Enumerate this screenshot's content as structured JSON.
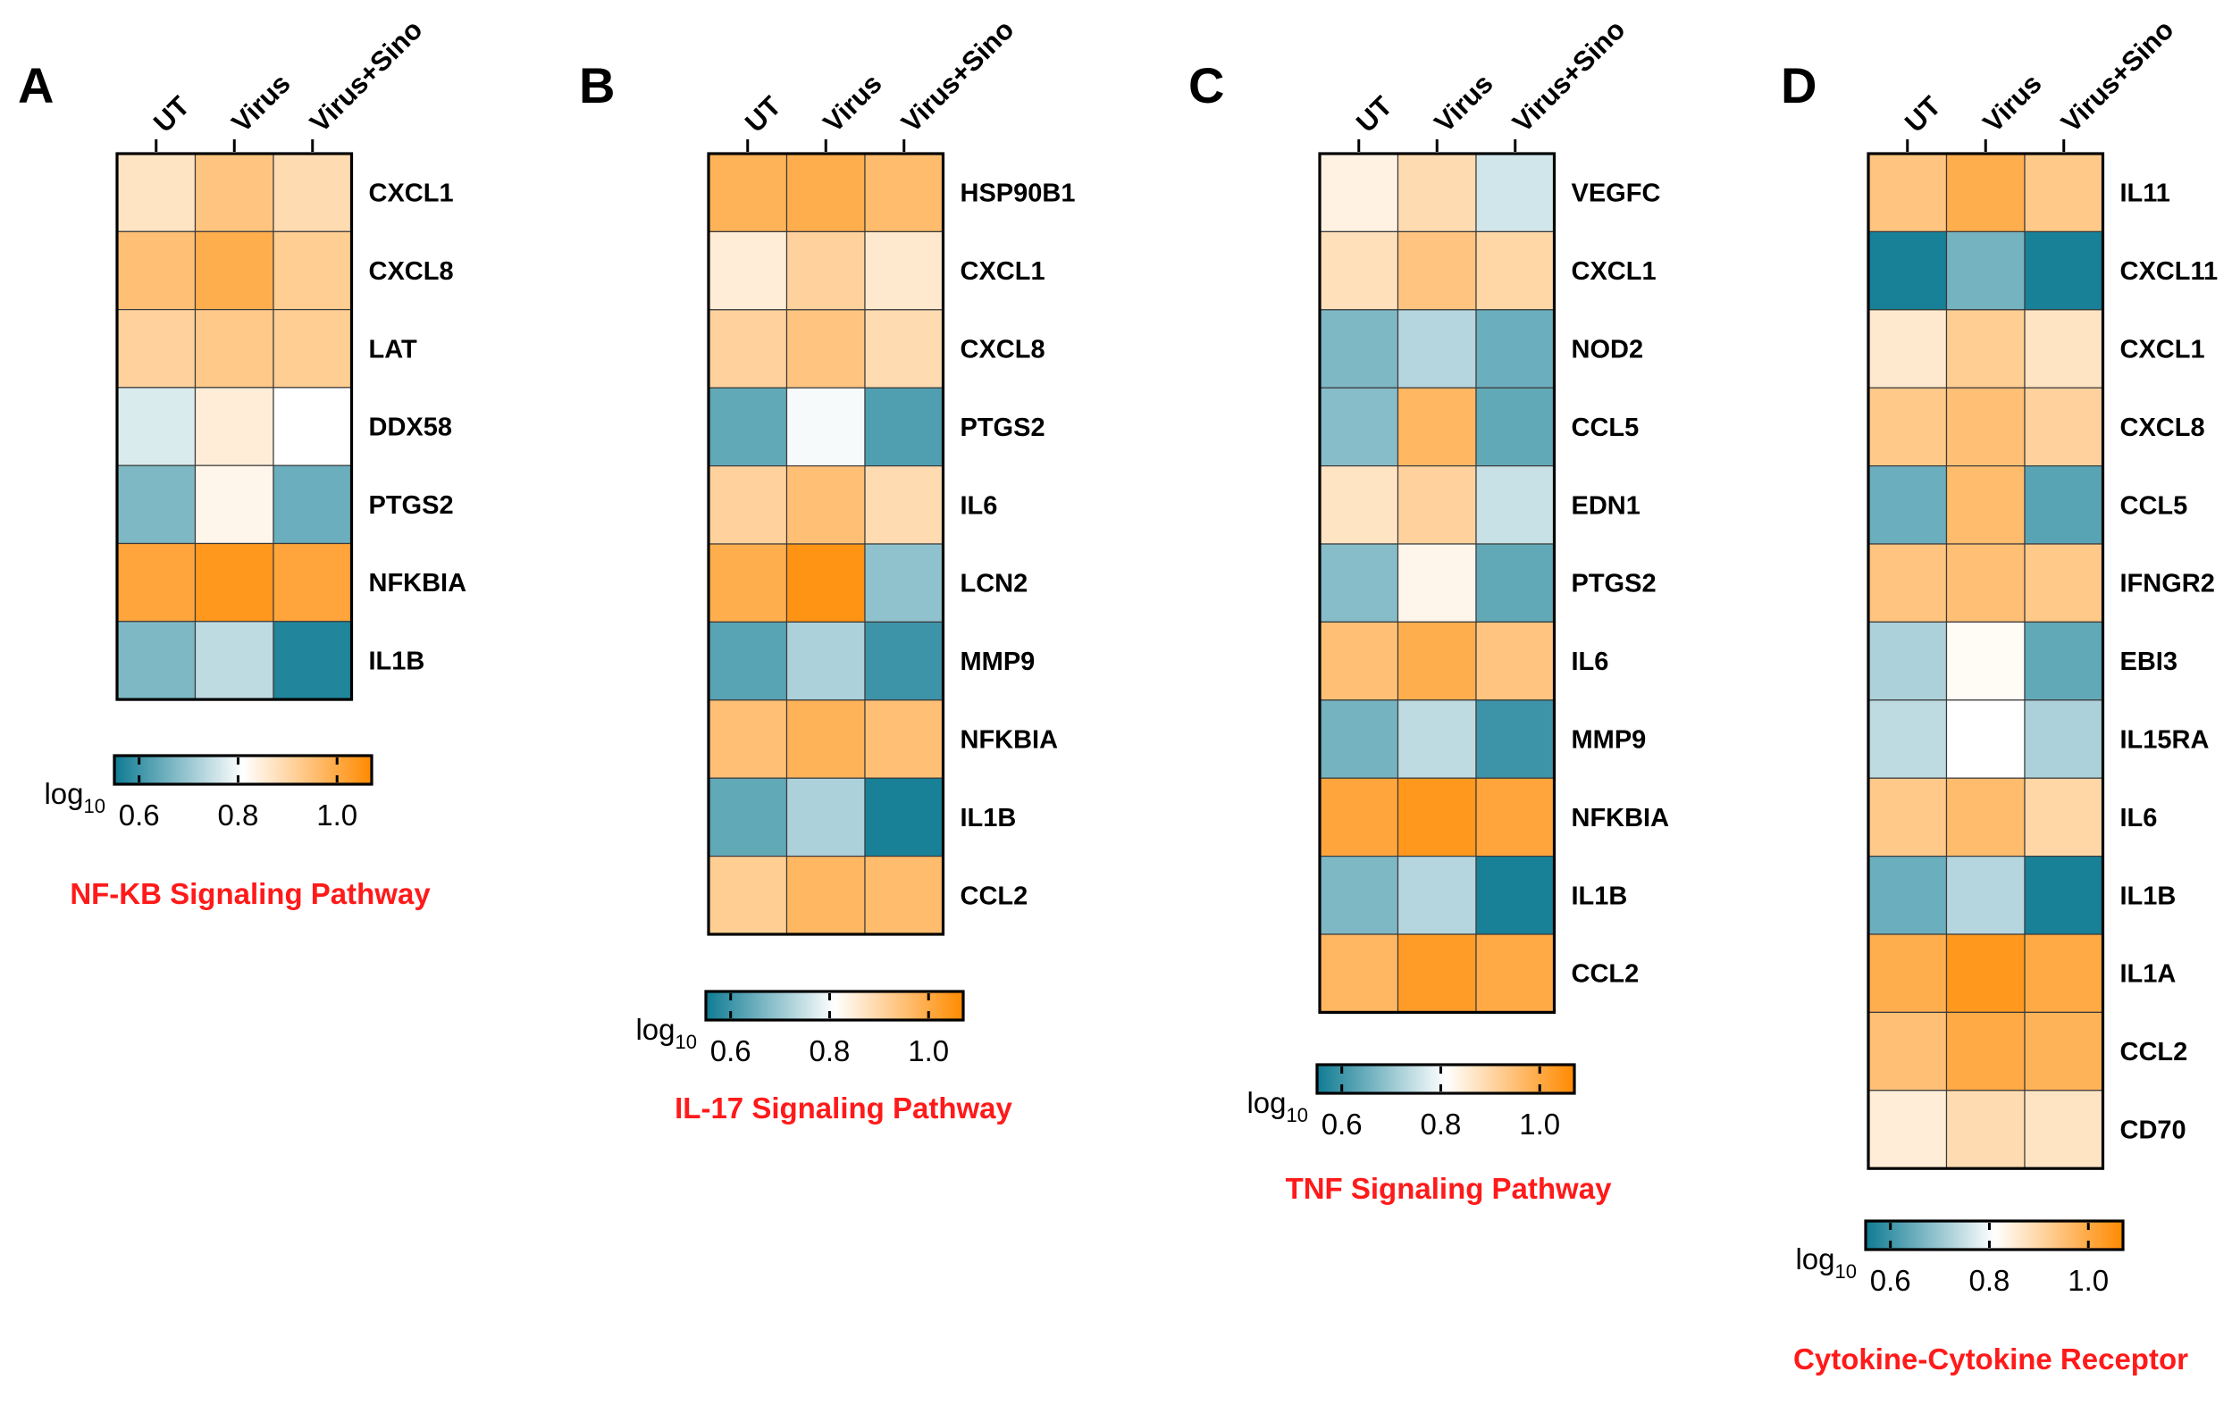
{
  "figure": {
    "columns": [
      "UT",
      "Virus",
      "Virus+Sino"
    ],
    "colorbar": {
      "unit_base": "log",
      "unit_sub": "10",
      "ticks": [
        "0.6",
        "0.8",
        "1.0"
      ],
      "tick_values": [
        0.6,
        0.8,
        1.0
      ],
      "range": [
        0.55,
        1.07
      ],
      "colors": {
        "low": "#0f7b93",
        "mid": "#ffffff",
        "high": "#ff8a00"
      }
    }
  },
  "chart_data": [
    {
      "type": "heatmap",
      "panel": "A",
      "title": "NF-KB Signaling Pathway",
      "columns": [
        "UT",
        "Virus",
        "Virus+Sino"
      ],
      "rows": [
        "CXCL1",
        "CXCL8",
        "LAT",
        "DDX58",
        "PTGS2",
        "NFKBIA",
        "IL1B"
      ],
      "values": [
        [
          0.87,
          0.94,
          0.89
        ],
        [
          0.95,
          0.99,
          0.92
        ],
        [
          0.91,
          0.93,
          0.92
        ],
        [
          0.77,
          0.85,
          0.81
        ],
        [
          0.67,
          0.83,
          0.65
        ],
        [
          1.01,
          1.04,
          1.01
        ],
        [
          0.67,
          0.74,
          0.57
        ]
      ],
      "colorbar_unit": "log10",
      "colorbar_ticks": [
        0.6,
        0.8,
        1.0
      ]
    },
    {
      "type": "heatmap",
      "panel": "B",
      "title": "IL-17 Signaling Pathway",
      "columns": [
        "UT",
        "Virus",
        "Virus+Sino"
      ],
      "rows": [
        "HSP90B1",
        "CXCL1",
        "CXCL8",
        "PTGS2",
        "IL6",
        "LCN2",
        "MMP9",
        "NFKBIA",
        "IL1B",
        "CCL2"
      ],
      "values": [
        [
          0.98,
          0.99,
          0.96
        ],
        [
          0.85,
          0.91,
          0.86
        ],
        [
          0.91,
          0.94,
          0.89
        ],
        [
          0.64,
          0.8,
          0.62
        ],
        [
          0.91,
          0.95,
          0.89
        ],
        [
          0.99,
          1.05,
          0.69
        ],
        [
          0.63,
          0.72,
          0.6
        ],
        [
          0.95,
          0.98,
          0.95
        ],
        [
          0.64,
          0.72,
          0.56
        ],
        [
          0.92,
          0.97,
          0.96
        ]
      ],
      "colorbar_unit": "log10",
      "colorbar_ticks": [
        0.6,
        0.8,
        1.0
      ]
    },
    {
      "type": "heatmap",
      "panel": "C",
      "title": "TNF Signaling Pathway",
      "columns": [
        "UT",
        "Virus",
        "Virus+Sino"
      ],
      "rows": [
        "VEGFC",
        "CXCL1",
        "NOD2",
        "CCL5",
        "EDN1",
        "PTGS2",
        "IL6",
        "MMP9",
        "NFKBIA",
        "IL1B",
        "CCL2"
      ],
      "values": [
        [
          0.84,
          0.89,
          0.76
        ],
        [
          0.88,
          0.94,
          0.9
        ],
        [
          0.67,
          0.73,
          0.65
        ],
        [
          0.68,
          0.97,
          0.64
        ],
        [
          0.87,
          0.91,
          0.75
        ],
        [
          0.68,
          0.83,
          0.64
        ],
        [
          0.95,
          0.99,
          0.94
        ],
        [
          0.66,
          0.74,
          0.6
        ],
        [
          1.01,
          1.04,
          1.01
        ],
        [
          0.67,
          0.73,
          0.56
        ],
        [
          0.97,
          1.03,
          1.0
        ]
      ],
      "colorbar_unit": "log10",
      "colorbar_ticks": [
        0.6,
        0.8,
        1.0
      ]
    },
    {
      "type": "heatmap",
      "panel": "D",
      "title": "Cytokine-Cytokine Receptor",
      "columns": [
        "UT",
        "Virus",
        "Virus+Sino"
      ],
      "rows": [
        "IL11",
        "CXCL11",
        "CXCL1",
        "CXCL8",
        "CCL5",
        "IFNGR2",
        "EBI3",
        "IL15RA",
        "IL6",
        "IL1B",
        "IL1A",
        "CCL2",
        "CD70"
      ],
      "values": [
        [
          0.94,
          0.99,
          0.93
        ],
        [
          0.56,
          0.66,
          0.56
        ],
        [
          0.86,
          0.92,
          0.87
        ],
        [
          0.93,
          0.95,
          0.91
        ],
        [
          0.65,
          0.96,
          0.63
        ],
        [
          0.94,
          0.95,
          0.93
        ],
        [
          0.72,
          0.82,
          0.64
        ],
        [
          0.74,
          0.81,
          0.72
        ],
        [
          0.93,
          0.96,
          0.9
        ],
        [
          0.65,
          0.73,
          0.56
        ],
        [
          0.99,
          1.04,
          1.0
        ],
        [
          0.95,
          1.0,
          0.98
        ],
        [
          0.85,
          0.89,
          0.87
        ]
      ],
      "colorbar_unit": "log10",
      "colorbar_ticks": [
        0.6,
        0.8,
        1.0
      ]
    }
  ]
}
